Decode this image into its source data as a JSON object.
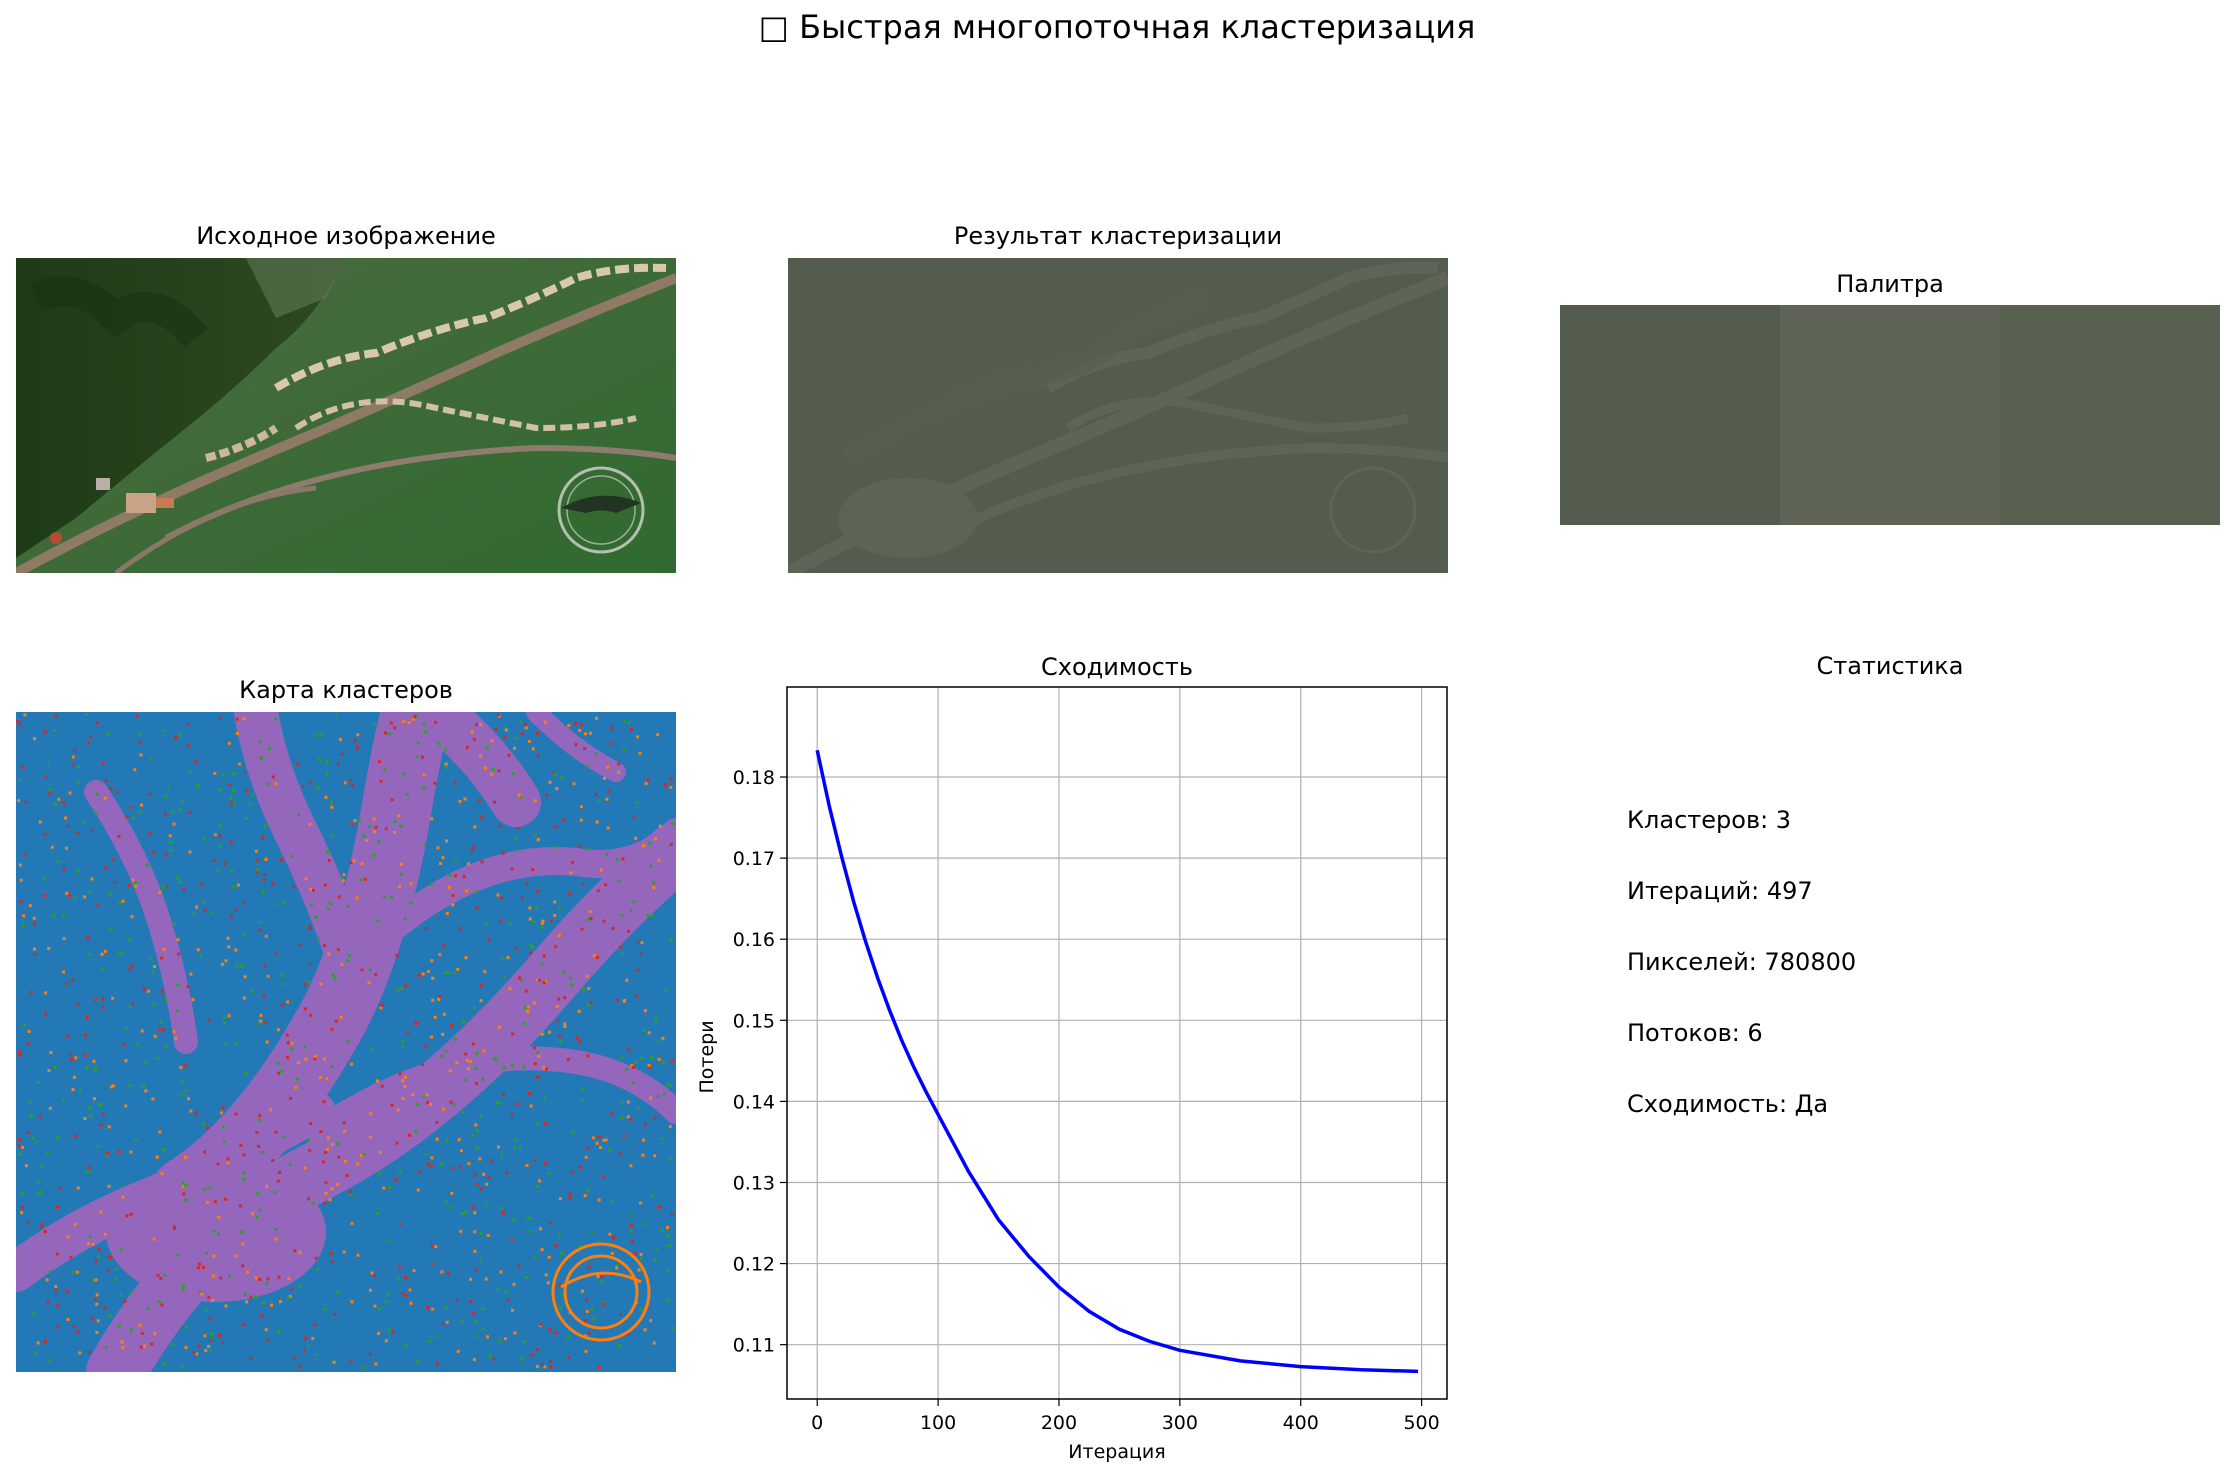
{
  "figure": {
    "suptitle": "□ Быстрая многопоточная кластеризация"
  },
  "panels": {
    "original": {
      "title": "Исходное изображение"
    },
    "result": {
      "title": "Результат кластеризации"
    },
    "palette": {
      "title": "Палитра",
      "colors": [
        "#535c4d",
        "#5e6556",
        "#586050"
      ]
    },
    "cluster_map": {
      "title": "Карта кластеров",
      "colors": {
        "background": "#2279b5",
        "path": "#9467bd",
        "speckle_a": "#d62728",
        "speckle_b": "#ff7f0e",
        "speckle_c": "#2ca02c"
      }
    },
    "convergence": {
      "title": "Сходимость"
    },
    "stats": {
      "title": "Статистика",
      "lines": [
        "Кластеров: 3",
        "Итераций: 497",
        "Пикселей: 780800",
        "Потоков: 6",
        "Сходимость: Да"
      ]
    }
  },
  "chart_data": {
    "type": "line",
    "title": "Сходимость",
    "xlabel": "Итерация",
    "ylabel": "Потери",
    "xlim": [
      -25,
      521
    ],
    "ylim": [
      0.1033,
      0.1911
    ],
    "xticks": [
      0,
      100,
      200,
      300,
      400,
      500
    ],
    "yticks": [
      0.11,
      0.12,
      0.13,
      0.14,
      0.15,
      0.16,
      0.17,
      0.18
    ],
    "ytick_labels": [
      "0.11",
      "0.12",
      "0.13",
      "0.14",
      "0.15",
      "0.16",
      "0.17",
      "0.18"
    ],
    "grid": true,
    "series": [
      {
        "color": "#0000ff",
        "x": [
          0,
          10,
          20,
          30,
          40,
          50,
          60,
          70,
          80,
          90,
          100,
          125,
          150,
          175,
          200,
          225,
          250,
          275,
          300,
          350,
          400,
          450,
          497
        ],
        "y": [
          0.1833,
          0.1764,
          0.1703,
          0.1647,
          0.1597,
          0.1552,
          0.1512,
          0.1475,
          0.1442,
          0.1412,
          0.1384,
          0.1314,
          0.1254,
          0.1209,
          0.1171,
          0.1141,
          0.1119,
          0.1104,
          0.1093,
          0.108,
          0.1073,
          0.1069,
          0.1067
        ]
      }
    ]
  }
}
